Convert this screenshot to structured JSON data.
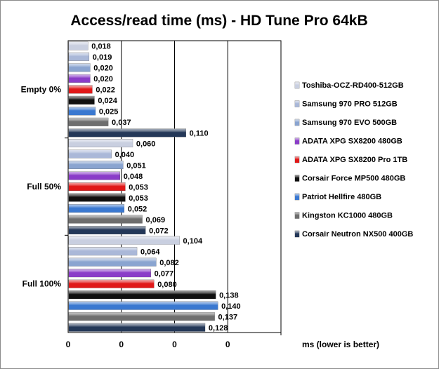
{
  "chart_data": {
    "type": "bar",
    "orientation": "horizontal",
    "title": "Access/read time (ms) - HD Tune Pro 64kB",
    "xlabel": "ms (lower is better)",
    "ylabel": "",
    "xlim": [
      0,
      0.2
    ],
    "x_ticks": [
      0,
      0.05,
      0.1,
      0.15
    ],
    "x_tick_labels": [
      "0",
      "0",
      "0",
      "0"
    ],
    "grid": "vertical",
    "legend_position": "right",
    "categories": [
      "Empty 0%",
      "Full 50%",
      "Full 100%"
    ],
    "series": [
      {
        "name": "Toshiba-OCZ-RD400-512GB",
        "color": "#c9cfe0",
        "values": [
          0.018,
          0.06,
          0.104
        ],
        "labels": [
          "0,018",
          "0,060",
          "0,104"
        ]
      },
      {
        "name": "Samsung 970 PRO 512GB",
        "color": "#aab8d8",
        "values": [
          0.019,
          0.04,
          0.064
        ],
        "labels": [
          "0,019",
          "0,040",
          "0,064"
        ]
      },
      {
        "name": "Samsung 970 EVO 500GB",
        "color": "#8aa4d0",
        "values": [
          0.02,
          0.051,
          0.082
        ],
        "labels": [
          "0,020",
          "0,051",
          "0,082"
        ]
      },
      {
        "name": "ADATA XPG SX8200 480GB",
        "color": "#8a3cc8",
        "values": [
          0.02,
          0.048,
          0.077
        ],
        "labels": [
          "0,020",
          "0,048",
          "0,077"
        ]
      },
      {
        "name": "ADATA XPG SX8200 Pro 1TB",
        "color": "#e01818",
        "values": [
          0.022,
          0.053,
          0.08
        ],
        "labels": [
          "0,022",
          "0,053",
          "0,080"
        ]
      },
      {
        "name": "Corsair Force MP500 480GB",
        "color": "#101010",
        "values": [
          0.024,
          0.053,
          0.138
        ],
        "labels": [
          "0,024",
          "0,053",
          "0,138"
        ]
      },
      {
        "name": "Patriot Hellfire 480GB",
        "color": "#3a78d0",
        "values": [
          0.025,
          0.052,
          0.14
        ],
        "labels": [
          "0,025",
          "0,052",
          "0,140"
        ]
      },
      {
        "name": "Kingston KC1000 480GB",
        "color": "#6e6e6e",
        "values": [
          0.037,
          0.069,
          0.137
        ],
        "labels": [
          "0,037",
          "0,069",
          "0,137"
        ]
      },
      {
        "name": "Corsair Neutron NX500 400GB",
        "color": "#243858",
        "values": [
          0.11,
          0.072,
          0.128
        ],
        "labels": [
          "0,110",
          "0,072",
          "0,128"
        ]
      }
    ]
  }
}
